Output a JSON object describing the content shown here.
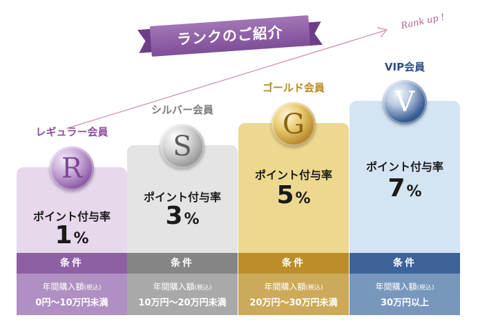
{
  "banner": {
    "title": "ランクのご紹介",
    "rank_up": "Rank up !"
  },
  "ranks": [
    {
      "name": "レギュラー会員",
      "letter": "R",
      "rate_label": "ポイント付与率",
      "rate": "1",
      "pct": "%",
      "cond_head": "条件",
      "cond_label": "年間購入額",
      "cond_tax": "(税込)",
      "cond_range": "0円～10万円未満",
      "colors": {
        "name": "#8b4fa0",
        "card": "#e7d8ec",
        "head": "#8d5fa3",
        "body": "#b08fc2"
      }
    },
    {
      "name": "シルバー会員",
      "letter": "S",
      "rate_label": "ポイント付与率",
      "rate": "3",
      "pct": "%",
      "cond_head": "条件",
      "cond_label": "年間購入額",
      "cond_tax": "(税込)",
      "cond_range": "10万円～20万円未満",
      "colors": {
        "name": "#7a7a7a",
        "card": "#e4e4e4",
        "head": "#858585",
        "body": "#a9a9a9"
      }
    },
    {
      "name": "ゴールド会員",
      "letter": "G",
      "rate_label": "ポイント付与率",
      "rate": "5",
      "pct": "%",
      "cond_head": "条件",
      "cond_label": "年間購入額",
      "cond_tax": "(税込)",
      "cond_range": "20万円～30万円未満",
      "colors": {
        "name": "#b98a1d",
        "card": "#ecd88f",
        "head": "#bb8e2a",
        "body": "#cdaa5a"
      }
    },
    {
      "name": "VIP会員",
      "letter": "V",
      "rate_label": "ポイント付与率",
      "rate": "7",
      "pct": "%",
      "cond_head": "条件",
      "cond_label": "年間購入額",
      "cond_tax": "(税込)",
      "cond_range": "30万円以上",
      "colors": {
        "name": "#2c4f86",
        "card": "#d4e4f2",
        "head": "#3d6399",
        "body": "#7897bd"
      }
    }
  ]
}
